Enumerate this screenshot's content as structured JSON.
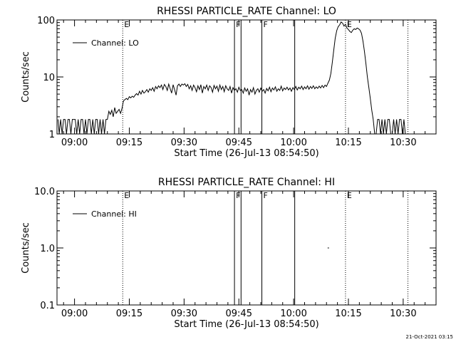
{
  "footer": {
    "timestamp": "21-Oct-2021 03:15"
  },
  "chart_data": [
    {
      "type": "line",
      "title": "RHESSI PARTICLE_RATE Channel: LO",
      "xlabel": "Start Time (26-Jul-13 08:54:50)",
      "ylabel": "Counts/sec",
      "yscale": "log",
      "ylim": [
        1,
        100
      ],
      "yticks": [
        1,
        10,
        100
      ],
      "ytick_labels": [
        "1",
        "10",
        "100"
      ],
      "xlim_minutes": [
        -4.8,
        99
      ],
      "xticks": [
        {
          "min": 0,
          "label": "09:00"
        },
        {
          "min": 15,
          "label": "09:15"
        },
        {
          "min": 30,
          "label": "09:30"
        },
        {
          "min": 45,
          "label": "09:45"
        },
        {
          "min": 60,
          "label": "10:00"
        },
        {
          "min": 75,
          "label": "10:15"
        },
        {
          "min": 90,
          "label": "10:30"
        }
      ],
      "legend": {
        "label": "Channel: LO",
        "position": "top-left"
      },
      "dotted_lines": [
        {
          "min": 13.2,
          "label": "E"
        },
        {
          "min": 74.2,
          "label": "E"
        },
        {
          "min": 91.3,
          "label": ""
        }
      ],
      "solid_lines": [
        {
          "min": 43.8,
          "label": "F"
        },
        {
          "min": 45.6,
          "label": ""
        },
        {
          "min": 51.3,
          "label": "F"
        },
        {
          "min": 60.3,
          "label": ""
        }
      ],
      "series": [
        {
          "points": [
            [
              -4.5,
              1.8
            ],
            [
              -4.2,
              1
            ],
            [
              -3.8,
              1.8
            ],
            [
              -3.4,
              1
            ],
            [
              -3.0,
              1.8
            ],
            [
              -2.6,
              1.8
            ],
            [
              -2.2,
              1
            ],
            [
              -1.8,
              1.8
            ],
            [
              -1.4,
              1.8
            ],
            [
              -1.0,
              1
            ],
            [
              -0.6,
              1.8
            ],
            [
              -0.2,
              1.8
            ],
            [
              0.2,
              1.8
            ],
            [
              0.6,
              1
            ],
            [
              1.0,
              1.8
            ],
            [
              1.4,
              1
            ],
            [
              1.8,
              1.8
            ],
            [
              2.2,
              1.8
            ],
            [
              2.6,
              1
            ],
            [
              3.0,
              1.8
            ],
            [
              3.4,
              1
            ],
            [
              3.8,
              1.8
            ],
            [
              4.2,
              1.8
            ],
            [
              4.6,
              1
            ],
            [
              5.0,
              1.8
            ],
            [
              5.4,
              1
            ],
            [
              5.8,
              1.8
            ],
            [
              6.2,
              1.8
            ],
            [
              6.6,
              1
            ],
            [
              7.0,
              1.8
            ],
            [
              7.4,
              1
            ],
            [
              7.8,
              1.8
            ],
            [
              8.2,
              1
            ],
            [
              8.6,
              1.8
            ],
            [
              9.0,
              1.8
            ],
            [
              9.4,
              2.5
            ],
            [
              9.8,
              2.2
            ],
            [
              10.2,
              2.6
            ],
            [
              10.6,
              2.0
            ],
            [
              11.0,
              2.9
            ],
            [
              11.4,
              2.3
            ],
            [
              11.8,
              2.5
            ],
            [
              12.2,
              2.7
            ],
            [
              12.6,
              2.3
            ],
            [
              13.0,
              2.8
            ],
            [
              13.4,
              3.8
            ],
            [
              13.8,
              4.0
            ],
            [
              14.2,
              4.2
            ],
            [
              14.6,
              4.0
            ],
            [
              15.0,
              4.5
            ],
            [
              15.4,
              4.3
            ],
            [
              15.8,
              4.6
            ],
            [
              16.2,
              4.4
            ],
            [
              16.6,
              4.8
            ],
            [
              17.0,
              5.1
            ],
            [
              17.4,
              4.8
            ],
            [
              17.8,
              5.6
            ],
            [
              18.2,
              5.0
            ],
            [
              18.6,
              5.8
            ],
            [
              19.0,
              5.2
            ],
            [
              19.4,
              5.5
            ],
            [
              19.8,
              6.0
            ],
            [
              20.2,
              5.4
            ],
            [
              20.6,
              6.2
            ],
            [
              21.0,
              5.8
            ],
            [
              21.4,
              6.5
            ],
            [
              21.8,
              5.6
            ],
            [
              22.2,
              6.8
            ],
            [
              22.6,
              6.2
            ],
            [
              23.0,
              7.0
            ],
            [
              23.4,
              6.5
            ],
            [
              23.8,
              7.2
            ],
            [
              24.2,
              6.0
            ],
            [
              24.6,
              7.4
            ],
            [
              25.0,
              6.8
            ],
            [
              25.4,
              5.8
            ],
            [
              25.8,
              7.5
            ],
            [
              26.2,
              6.2
            ],
            [
              26.6,
              5.2
            ],
            [
              27.0,
              7.3
            ],
            [
              27.4,
              6.0
            ],
            [
              27.8,
              4.8
            ],
            [
              28.2,
              7.0
            ],
            [
              28.6,
              7.5
            ],
            [
              29.0,
              6.8
            ],
            [
              29.4,
              7.5
            ],
            [
              29.8,
              7.2
            ],
            [
              30.2,
              7.6
            ],
            [
              30.6,
              6.8
            ],
            [
              31.0,
              7.4
            ],
            [
              31.4,
              6.2
            ],
            [
              31.8,
              7.0
            ],
            [
              32.2,
              5.8
            ],
            [
              32.6,
              7.2
            ],
            [
              33.0,
              6.5
            ],
            [
              33.4,
              5.5
            ],
            [
              33.8,
              7.0
            ],
            [
              34.2,
              6.0
            ],
            [
              34.6,
              7.3
            ],
            [
              35.0,
              5.2
            ],
            [
              35.4,
              6.8
            ],
            [
              35.8,
              6.2
            ],
            [
              36.2,
              7.2
            ],
            [
              36.6,
              5.8
            ],
            [
              37.0,
              7.0
            ],
            [
              37.4,
              6.5
            ],
            [
              37.8,
              5.4
            ],
            [
              38.2,
              7.1
            ],
            [
              38.6,
              6.2
            ],
            [
              39.0,
              6.9
            ],
            [
              39.4,
              5.6
            ],
            [
              39.8,
              7.2
            ],
            [
              40.2,
              6.0
            ],
            [
              40.6,
              6.8
            ],
            [
              41.0,
              5.5
            ],
            [
              41.4,
              7.0
            ],
            [
              41.8,
              6.2
            ],
            [
              42.2,
              5.8
            ],
            [
              42.6,
              6.8
            ],
            [
              43.0,
              5.2
            ],
            [
              43.4,
              6.5
            ],
            [
              43.8,
              5.8
            ],
            [
              44.2,
              6.2
            ],
            [
              44.6,
              5.4
            ],
            [
              45.0,
              6.6
            ],
            [
              45.4,
              5.8
            ],
            [
              45.8,
              6.0
            ],
            [
              46.2,
              5.2
            ],
            [
              46.6,
              6.4
            ],
            [
              47.0,
              5.6
            ],
            [
              47.4,
              6.2
            ],
            [
              47.8,
              4.8
            ],
            [
              48.2,
              6.0
            ],
            [
              48.6,
              5.4
            ],
            [
              49.0,
              6.5
            ],
            [
              49.4,
              5.0
            ],
            [
              49.8,
              5.8
            ],
            [
              50.2,
              6.2
            ],
            [
              50.6,
              5.4
            ],
            [
              51.0,
              6.4
            ],
            [
              51.4,
              5.6
            ],
            [
              51.8,
              6.0
            ],
            [
              52.2,
              5.2
            ],
            [
              52.6,
              6.3
            ],
            [
              53.0,
              5.7
            ],
            [
              53.4,
              6.6
            ],
            [
              53.8,
              5.5
            ],
            [
              54.2,
              6.4
            ],
            [
              54.6,
              5.9
            ],
            [
              55.0,
              6.7
            ],
            [
              55.4,
              5.6
            ],
            [
              55.8,
              6.2
            ],
            [
              56.2,
              5.8
            ],
            [
              56.6,
              6.9
            ],
            [
              57.0,
              5.7
            ],
            [
              57.4,
              6.4
            ],
            [
              57.8,
              6.0
            ],
            [
              58.2,
              6.6
            ],
            [
              58.6,
              5.9
            ],
            [
              59.0,
              6.4
            ],
            [
              59.4,
              5.6
            ],
            [
              59.8,
              6.5
            ],
            [
              60.2,
              6.0
            ],
            [
              60.6,
              6.8
            ],
            [
              61.0,
              5.9
            ],
            [
              61.4,
              6.6
            ],
            [
              61.8,
              6.2
            ],
            [
              62.2,
              6.9
            ],
            [
              62.6,
              6.0
            ],
            [
              63.0,
              6.7
            ],
            [
              63.4,
              6.2
            ],
            [
              63.8,
              7.0
            ],
            [
              64.2,
              6.1
            ],
            [
              64.6,
              6.8
            ],
            [
              65.0,
              6.3
            ],
            [
              65.4,
              7.0
            ],
            [
              65.8,
              6.2
            ],
            [
              66.2,
              6.7
            ],
            [
              66.6,
              6.3
            ],
            [
              67.0,
              6.9
            ],
            [
              67.4,
              6.4
            ],
            [
              67.8,
              7.1
            ],
            [
              68.2,
              6.5
            ],
            [
              68.6,
              7.2
            ],
            [
              69.0,
              6.8
            ],
            [
              69.4,
              7.8
            ],
            [
              69.8,
              8.8
            ],
            [
              70.2,
              11.5
            ],
            [
              70.6,
              18
            ],
            [
              71.0,
              30
            ],
            [
              71.4,
              48
            ],
            [
              71.8,
              65
            ],
            [
              72.2,
              76
            ],
            [
              72.6,
              82
            ],
            [
              73.0,
              92
            ],
            [
              73.4,
              88
            ],
            [
              73.8,
              78
            ],
            [
              74.2,
              84
            ],
            [
              74.6,
              72
            ],
            [
              75.0,
              68
            ],
            [
              75.4,
              63
            ],
            [
              75.8,
              60
            ],
            [
              76.2,
              66
            ],
            [
              76.6,
              70
            ],
            [
              77.0,
              68
            ],
            [
              77.4,
              72
            ],
            [
              77.8,
              70
            ],
            [
              78.2,
              66
            ],
            [
              78.6,
              58
            ],
            [
              79.0,
              42
            ],
            [
              79.4,
              28
            ],
            [
              79.8,
              17
            ],
            [
              80.2,
              10
            ],
            [
              80.6,
              6.5
            ],
            [
              81.0,
              4.2
            ],
            [
              81.4,
              2.6
            ],
            [
              81.8,
              1.8
            ],
            [
              82.2,
              1
            ],
            [
              82.6,
              1
            ],
            [
              83.0,
              1.8
            ],
            [
              83.4,
              1.8
            ],
            [
              83.8,
              1
            ],
            [
              84.2,
              1.8
            ],
            [
              84.6,
              1
            ],
            [
              85.0,
              1.8
            ],
            [
              85.4,
              1
            ],
            [
              85.8,
              1.8
            ],
            [
              86.2,
              1.8
            ],
            [
              86.6,
              1
            ],
            [
              87.0,
              1
            ],
            [
              87.4,
              1.8
            ],
            [
              87.8,
              1
            ],
            [
              88.2,
              1.8
            ],
            [
              88.6,
              1
            ],
            [
              89.0,
              1.8
            ],
            [
              89.4,
              1.8
            ],
            [
              89.8,
              1
            ],
            [
              90.2,
              1.8
            ],
            [
              90.6,
              1
            ]
          ]
        }
      ]
    },
    {
      "type": "line",
      "title": "RHESSI PARTICLE_RATE Channel: HI",
      "xlabel": "Start Time (26-Jul-13 08:54:50)",
      "ylabel": "Counts/sec",
      "yscale": "log",
      "ylim": [
        0.1,
        10
      ],
      "yticks": [
        0.1,
        1,
        10
      ],
      "ytick_labels": [
        "0.1",
        "1.0",
        "10.0"
      ],
      "xlim_minutes": [
        -4.8,
        99
      ],
      "xticks": [
        {
          "min": 0,
          "label": "09:00"
        },
        {
          "min": 15,
          "label": "09:15"
        },
        {
          "min": 30,
          "label": "09:30"
        },
        {
          "min": 45,
          "label": "09:45"
        },
        {
          "min": 60,
          "label": "10:00"
        },
        {
          "min": 75,
          "label": "10:15"
        },
        {
          "min": 90,
          "label": "10:30"
        }
      ],
      "legend": {
        "label": "Channel: HI",
        "position": "top-left"
      },
      "dotted_lines": [
        {
          "min": 13.2,
          "label": "E"
        },
        {
          "min": 74.2,
          "label": "E"
        },
        {
          "min": 91.3,
          "label": ""
        }
      ],
      "solid_lines": [
        {
          "min": 43.8,
          "label": "F"
        },
        {
          "min": 45.6,
          "label": ""
        },
        {
          "min": 51.3,
          "label": "F"
        },
        {
          "min": 60.3,
          "label": ""
        }
      ],
      "series": [
        {
          "points": [
            [
              69.3,
              1.0
            ],
            [
              69.7,
              1.0
            ]
          ]
        }
      ]
    }
  ]
}
